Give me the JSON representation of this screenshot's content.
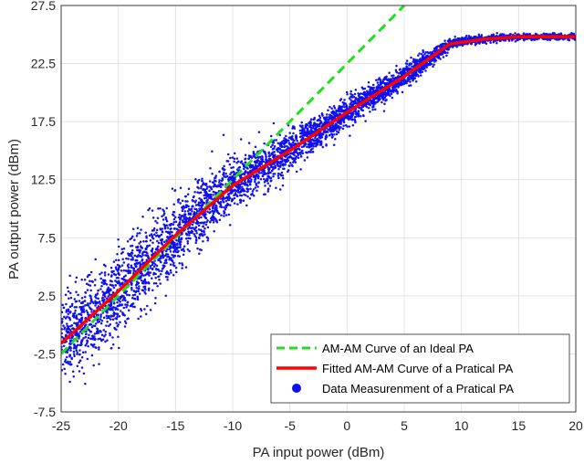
{
  "chart_data": {
    "type": "scatter",
    "xlabel": "PA input power (dBm)",
    "ylabel": "PA output power (dBm)",
    "xlim": [
      -25,
      20
    ],
    "ylim": [
      -7.5,
      27.5
    ],
    "x_ticks": [
      "-25",
      "-20",
      "-15",
      "-10",
      "-5",
      "0",
      "5",
      "10",
      "15",
      "20"
    ],
    "y_ticks": [
      "-7.5",
      "-2.5",
      "2.5",
      "7.5",
      "12.5",
      "17.5",
      "22.5",
      "27.5"
    ],
    "grid": true,
    "legend_position": "bottom-right",
    "series": [
      {
        "name": "AM-AM Curve of an Ideal PA",
        "style": "dashed-line",
        "color": "#22dd22",
        "x": [
          -25,
          5
        ],
        "y": [
          -2.5,
          27.5
        ]
      },
      {
        "name": "Fitted AM-AM Curve of a Pratical PA",
        "style": "line",
        "color": "#ff0000",
        "x": [
          -25,
          -20,
          -15,
          -10,
          -5,
          0,
          5,
          9,
          12,
          15,
          20
        ],
        "y": [
          -1.6,
          2.9,
          7.7,
          12.0,
          15.0,
          18.3,
          21.4,
          24.2,
          24.6,
          24.8,
          24.8
        ]
      },
      {
        "name": "Data Measurenment of a Pratical PA",
        "style": "markers",
        "color": "#1010ee",
        "x": [
          -25,
          -24,
          -23,
          -22,
          -21,
          -20,
          -19,
          -18,
          -17,
          -16,
          -15,
          -14,
          -13,
          -12,
          -11,
          -10,
          -9,
          -8,
          -7,
          -6,
          -5,
          -4,
          -3,
          -2,
          -1,
          0,
          1,
          2,
          3,
          4,
          5,
          6,
          7,
          8,
          9,
          10,
          12,
          15,
          18,
          20
        ],
        "y": [
          -1.7,
          -0.8,
          0.1,
          1.0,
          1.9,
          2.8,
          3.8,
          4.8,
          5.8,
          6.7,
          7.7,
          8.6,
          9.5,
          10.4,
          11.2,
          12.0,
          12.6,
          13.2,
          13.8,
          14.4,
          15.0,
          15.7,
          16.3,
          17.0,
          17.6,
          18.3,
          18.9,
          19.5,
          20.1,
          20.7,
          21.4,
          22.1,
          22.8,
          23.5,
          24.2,
          24.4,
          24.6,
          24.8,
          24.8,
          24.8
        ],
        "y_spread": [
          3.0,
          3.0,
          2.9,
          2.9,
          2.8,
          2.8,
          2.7,
          2.6,
          2.5,
          2.4,
          2.3,
          2.2,
          2.1,
          2.0,
          1.9,
          1.8,
          1.7,
          1.6,
          1.5,
          1.4,
          1.3,
          1.3,
          1.2,
          1.2,
          1.1,
          1.0,
          1.0,
          0.9,
          0.9,
          0.8,
          0.8,
          0.7,
          0.6,
          0.5,
          0.4,
          0.3,
          0.25,
          0.2,
          0.2,
          0.2
        ]
      }
    ]
  }
}
